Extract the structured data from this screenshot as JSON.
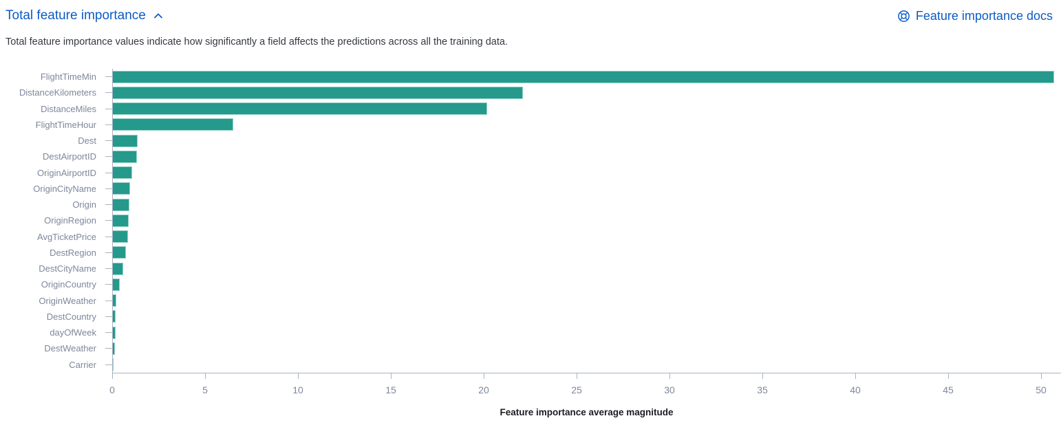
{
  "header": {
    "title": "Total feature importance",
    "collapse_icon": "chevron-up-icon",
    "docs_link_label": "Feature importance docs",
    "docs_link_icon": "help-lifering-icon",
    "description": "Total feature importance values indicate how significantly a field affects the predictions across all the training data."
  },
  "colors": {
    "bar": "#24998c",
    "bar_border": "#8fd0c5",
    "link": "#0b5cc4",
    "axis_line": "#a9b2c3",
    "tick_label": "#7d879a",
    "text": "#343741",
    "axis_title": "#1a1c21"
  },
  "chart_data": {
    "type": "bar",
    "orientation": "horizontal",
    "title": "",
    "xlabel": "Feature importance average magnitude",
    "ylabel": "",
    "xlim": [
      0,
      51
    ],
    "xticks": [
      0,
      5,
      10,
      15,
      20,
      25,
      30,
      35,
      40,
      45,
      50
    ],
    "grid": false,
    "legend": false,
    "categories": [
      "FlightTimeMin",
      "DistanceKilometers",
      "DistanceMiles",
      "FlightTimeHour",
      "Dest",
      "DestAirportID",
      "OriginAirportID",
      "OriginCityName",
      "Origin",
      "OriginRegion",
      "AvgTicketPrice",
      "DestRegion",
      "DestCityName",
      "OriginCountry",
      "OriginWeather",
      "DestCountry",
      "dayOfWeek",
      "DestWeather",
      "Carrier"
    ],
    "values": [
      50.7,
      22.1,
      20.2,
      6.5,
      1.37,
      1.33,
      1.07,
      0.96,
      0.93,
      0.89,
      0.85,
      0.73,
      0.59,
      0.41,
      0.21,
      0.17,
      0.17,
      0.14,
      0.05
    ]
  }
}
